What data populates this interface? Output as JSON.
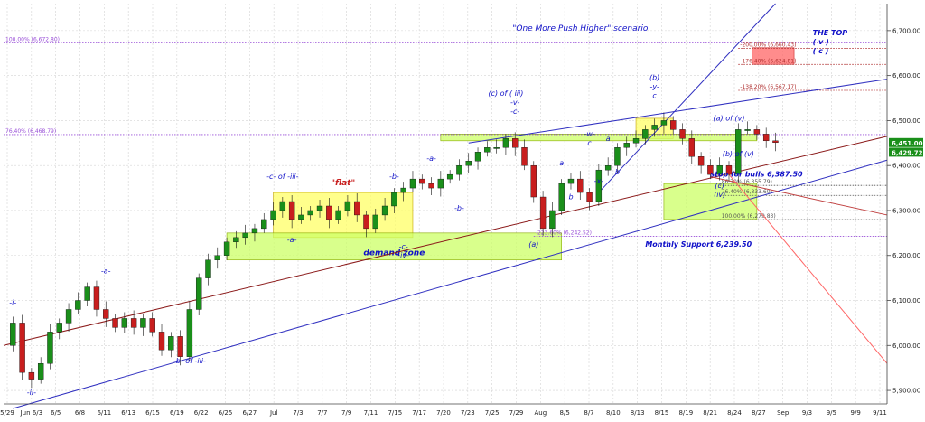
{
  "chart_data": {
    "type": "candlestick",
    "title": "\"One More Push Higher\" scenario",
    "y_range": [
      5870,
      6760
    ],
    "y_ticks": [
      5900,
      6000,
      6100,
      6200,
      6300,
      6400,
      6500,
      6600,
      6700
    ],
    "y_tick_labels": [
      "5,900.00",
      "6,000.00",
      "6,100.00",
      "6,200.00",
      "6,300.00",
      "6,400.00",
      "6,500.00",
      "6,600.00",
      "6,700.00"
    ],
    "x_tick_labels": [
      "5/29",
      "Jun 6/3",
      "6/5",
      "6/8",
      "6/11",
      "6/13",
      "6/15",
      "6/19",
      "6/22",
      "6/25",
      "6/27",
      "Jul",
      "7/3",
      "7/7",
      "7/9",
      "7/11",
      "7/15",
      "7/17",
      "7/20",
      "7/23",
      "7/25",
      "7/29",
      "Aug",
      "8/5",
      "8/7",
      "8/10",
      "8/13",
      "8/15",
      "8/19",
      "8/21",
      "8/24",
      "8/27",
      "Sep",
      "9/3",
      "9/5",
      "9/9",
      "9/11"
    ],
    "last_price": {
      "value": 6451.0,
      "label": "6,451.00",
      "color": "#1a8f1a"
    },
    "secondary_price": {
      "value": 6429.72,
      "label": "6,429.72",
      "color": "#1a8f1a"
    },
    "price_path": [
      [
        0,
        6000
      ],
      [
        1,
        6050
      ],
      [
        2,
        5940
      ],
      [
        3,
        5925
      ],
      [
        4,
        5960
      ],
      [
        5,
        6030
      ],
      [
        6,
        6050
      ],
      [
        7,
        6080
      ],
      [
        8,
        6100
      ],
      [
        9,
        6130
      ],
      [
        10,
        6080
      ],
      [
        11,
        6060
      ],
      [
        12,
        6040
      ],
      [
        13,
        6060
      ],
      [
        14,
        6040
      ],
      [
        15,
        6060
      ],
      [
        16,
        6030
      ],
      [
        17,
        5990
      ],
      [
        18,
        6020
      ],
      [
        19,
        5975
      ],
      [
        20,
        6080
      ],
      [
        21,
        6150
      ],
      [
        22,
        6190
      ],
      [
        23,
        6200
      ],
      [
        24,
        6230
      ],
      [
        25,
        6240
      ],
      [
        26,
        6250
      ],
      [
        27,
        6260
      ],
      [
        28,
        6280
      ],
      [
        29,
        6300
      ],
      [
        30,
        6320
      ],
      [
        31,
        6280
      ],
      [
        32,
        6290
      ],
      [
        33,
        6300
      ],
      [
        34,
        6310
      ],
      [
        35,
        6280
      ],
      [
        36,
        6300
      ],
      [
        37,
        6320
      ],
      [
        38,
        6290
      ],
      [
        39,
        6260
      ],
      [
        40,
        6290
      ],
      [
        41,
        6310
      ],
      [
        42,
        6340
      ],
      [
        43,
        6350
      ],
      [
        44,
        6370
      ],
      [
        45,
        6360
      ],
      [
        46,
        6350
      ],
      [
        47,
        6370
      ],
      [
        48,
        6380
      ],
      [
        49,
        6400
      ],
      [
        50,
        6410
      ],
      [
        51,
        6430
      ],
      [
        52,
        6440
      ],
      [
        53,
        6440
      ],
      [
        54,
        6460
      ],
      [
        55,
        6440
      ],
      [
        56,
        6400
      ],
      [
        57,
        6330
      ],
      [
        58,
        6260
      ],
      [
        59,
        6300
      ],
      [
        60,
        6360
      ],
      [
        61,
        6370
      ],
      [
        62,
        6340
      ],
      [
        63,
        6320
      ],
      [
        64,
        6390
      ],
      [
        65,
        6400
      ],
      [
        66,
        6440
      ],
      [
        67,
        6450
      ],
      [
        68,
        6460
      ],
      [
        69,
        6480
      ],
      [
        70,
        6490
      ],
      [
        71,
        6500
      ],
      [
        72,
        6480
      ],
      [
        73,
        6460
      ],
      [
        74,
        6420
      ],
      [
        75,
        6400
      ],
      [
        76,
        6380
      ],
      [
        77,
        6400
      ],
      [
        78,
        6380
      ],
      [
        79,
        6480
      ],
      [
        80,
        6480
      ],
      [
        81,
        6470
      ],
      [
        82,
        6455
      ],
      [
        83,
        6451
      ]
    ],
    "levels": [
      {
        "label": "100.00% (6,672.80)",
        "value": 6672.8,
        "color": "#9a50d8",
        "style": "dotted",
        "from": 0
      },
      {
        "label": "76.40% (6,468.79)",
        "value": 6468.79,
        "color": "#9a50d8",
        "style": "dotted",
        "from": 0
      },
      {
        "label": "-200.00% (6,660.43)",
        "value": 6660.43,
        "color": "#b03030",
        "style": "dotted",
        "from": 79
      },
      {
        "label": "-176.40% (6,624.81)",
        "value": 6624.81,
        "color": "#b03030",
        "style": "dotted",
        "from": 79
      },
      {
        "label": "-138.20% (6,567.17)",
        "value": 6567.17,
        "color": "#b03030",
        "style": "dotted",
        "from": 79
      },
      {
        "label": "86.70% (6,355.79)",
        "value": 6355.79,
        "color": "#555555",
        "style": "dotted",
        "from": 77
      },
      {
        "label": "76.40% (6,333.60)",
        "value": 6333.6,
        "color": "#555555",
        "style": "dotted",
        "from": 77
      },
      {
        "label": "100.00% (6,279.83)",
        "value": 6279.83,
        "color": "#555555",
        "style": "dotted",
        "from": 77
      },
      {
        "label": "-223.60% (6,242.52)",
        "value": 6242.52,
        "color": "#9a50d8",
        "style": "dotted",
        "from": 57
      }
    ],
    "zones": [
      {
        "label": "\"flat\"",
        "x": [
          29,
          44
        ],
        "y": [
          6240,
          6340
        ],
        "fill": "#ffff66",
        "stroke": "#c0a000"
      },
      {
        "label": "demand zone",
        "x": [
          24,
          60
        ],
        "y": [
          6190,
          6250
        ],
        "fill": "#ccff66",
        "stroke": "#88aa00"
      },
      {
        "label": "",
        "x": [
          68,
          72
        ],
        "y": [
          6460,
          6505
        ],
        "fill": "#ffff66",
        "stroke": "#c0a000"
      },
      {
        "label": "",
        "x": [
          47,
          81
        ],
        "y": [
          6455,
          6470
        ],
        "fill": "#ccff66",
        "stroke": "#88aa00"
      },
      {
        "label": "",
        "x": [
          71,
          81
        ],
        "y": [
          6280,
          6360
        ],
        "fill": "#ccff66",
        "stroke": "#88aa00"
      },
      {
        "label": "",
        "x": [
          80.5,
          85
        ],
        "y": [
          6625,
          6662
        ],
        "fill": "#ff6666",
        "stroke": "#cc2222"
      }
    ],
    "trendlines": [
      {
        "from": [
          0,
          6000
        ],
        "to": [
          95,
          6465
        ],
        "color": "#8b1a1a"
      },
      {
        "from": [
          1,
          5860
        ],
        "to": [
          95,
          6412
        ],
        "color": "#3030c0"
      },
      {
        "from": [
          50,
          6450
        ],
        "to": [
          95,
          6592
        ],
        "color": "#3030c0"
      },
      {
        "from": [
          64,
          6340
        ],
        "to": [
          83,
          6760
        ],
        "color": "#3030c0"
      },
      {
        "from": [
          76,
          6375
        ],
        "to": [
          95,
          6290
        ],
        "color": "#c04040"
      },
      {
        "from": [
          78,
          6380
        ],
        "to": [
          95,
          5960
        ],
        "color": "#ff6666"
      }
    ],
    "wave_labels": [
      {
        "text": "-i-",
        "x": 1,
        "y": 6090
      },
      {
        "text": "-ii-",
        "x": 3,
        "y": 5890
      },
      {
        "text": "-a-",
        "x": 11,
        "y": 6160
      },
      {
        "text": "-b- of -iii-",
        "x": 20,
        "y": 5960
      },
      {
        "text": "-c- of -iii-",
        "x": 30,
        "y": 6370
      },
      {
        "text": "-a-",
        "x": 31,
        "y": 6230
      },
      {
        "text": "-b-",
        "x": 42,
        "y": 6370
      },
      {
        "text": "-c-",
        "x": 43,
        "y": 6215
      },
      {
        "text": "-iv-",
        "x": 43,
        "y": 6195
      },
      {
        "text": "-a-",
        "x": 46,
        "y": 6410
      },
      {
        "text": "-b-",
        "x": 49,
        "y": 6300
      },
      {
        "text": "(c) of ( iii)",
        "x": 54,
        "y": 6555
      },
      {
        "text": "-v-",
        "x": 55,
        "y": 6535
      },
      {
        "text": "-c-",
        "x": 55,
        "y": 6515
      },
      {
        "text": "(a)",
        "x": 57,
        "y": 6220
      },
      {
        "text": "a",
        "x": 60,
        "y": 6400
      },
      {
        "text": "b",
        "x": 61,
        "y": 6325
      },
      {
        "text": "-w-",
        "x": 63,
        "y": 6465
      },
      {
        "text": "c",
        "x": 63,
        "y": 6445
      },
      {
        "text": "-x-",
        "x": 64,
        "y": 6360
      },
      {
        "text": "a",
        "x": 65,
        "y": 6455
      },
      {
        "text": "b",
        "x": 66,
        "y": 6380
      },
      {
        "text": "(b)",
        "x": 70,
        "y": 6590
      },
      {
        "text": "-y-",
        "x": 70,
        "y": 6570
      },
      {
        "text": "c",
        "x": 70,
        "y": 6550
      },
      {
        "text": "(a) of (v)",
        "x": 78,
        "y": 6500
      },
      {
        "text": "(c)",
        "x": 77,
        "y": 6350
      },
      {
        "text": "(iv)",
        "x": 77,
        "y": 6330
      },
      {
        "text": "(b) of (v)",
        "x": 79,
        "y": 6420
      }
    ],
    "annotations": [
      {
        "text": "THE TOP",
        "x": 87,
        "y": 6690,
        "color": "#1010c8"
      },
      {
        "text": "( v )",
        "x": 87,
        "y": 6670,
        "color": "#1010c8"
      },
      {
        "text": "( c )",
        "x": 87,
        "y": 6650,
        "color": "#1010c8"
      },
      {
        "text": "stop for bulls 6,387.50",
        "x": 76,
        "y": 6375,
        "color": "#1010c8"
      },
      {
        "text": "Monthly Support 6,239.50",
        "x": 69,
        "y": 6220,
        "color": "#1010c8"
      }
    ]
  },
  "colors": {
    "background": "#ffffff",
    "up": "#1a8f1a",
    "down": "#c81e1e",
    "wave_text": "#1010c8",
    "axis_text": "#222222"
  }
}
